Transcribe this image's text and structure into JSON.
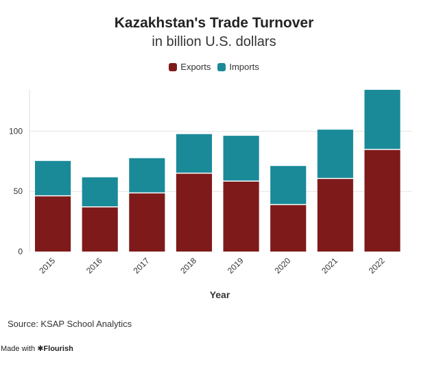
{
  "chart_data": {
    "type": "bar",
    "stacked": true,
    "title": "Kazakhstan's Trade Turnover",
    "subtitle": "in billion U.S. dollars",
    "xlabel": "Year",
    "ylabel": "",
    "categories": [
      "2015",
      "2016",
      "2017",
      "2018",
      "2019",
      "2020",
      "2021",
      "2022"
    ],
    "series": [
      {
        "name": "Exports",
        "color": "#7f1a1a",
        "values": [
          45.9,
          36.7,
          48.3,
          64.7,
          58.1,
          38.6,
          60.3,
          84.4
        ]
      },
      {
        "name": "Imports",
        "color": "#1a8a99",
        "values": [
          29.4,
          25.0,
          29.3,
          32.9,
          38.1,
          32.5,
          41.0,
          50.0
        ]
      }
    ],
    "ylim": [
      0,
      135
    ],
    "yticks": [
      0,
      50,
      100
    ],
    "grid": true,
    "legend": "top-center"
  },
  "source": "Source: KSAP School Analytics",
  "made_with": {
    "prefix": "Made with",
    "brand": "Flourish"
  }
}
